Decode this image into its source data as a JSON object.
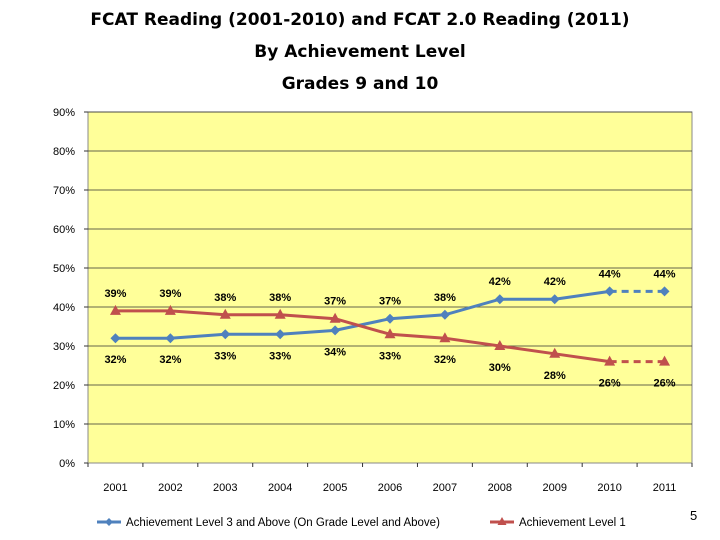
{
  "chart_data": {
    "type": "line",
    "title": "FCAT Reading (2001-2010) and FCAT 2.0 Reading (2011)",
    "subtitle": "By Achievement Level",
    "subtitle2": "Grades 9 and 10",
    "categories": [
      "2001",
      "2002",
      "2003",
      "2004",
      "2005",
      "2006",
      "2007",
      "2008",
      "2009",
      "2010",
      "2011"
    ],
    "ylim": [
      0,
      90
    ],
    "yticks": [
      "0%",
      "10%",
      "20%",
      "30%",
      "40%",
      "50%",
      "60%",
      "70%",
      "80%",
      "90%"
    ],
    "ytick_values": [
      0,
      10,
      20,
      30,
      40,
      50,
      60,
      70,
      80,
      90
    ],
    "grid": true,
    "legend_position": "bottom",
    "plot_background": "#ffff99",
    "series": [
      {
        "name": "Achievement Level 3 and Above (On Grade Level and Above)",
        "color": "#4f81bd",
        "marker": "diamond",
        "values": [
          32,
          32,
          33,
          33,
          34,
          37,
          38,
          42,
          42,
          44,
          44
        ],
        "labels": [
          "32%",
          "32%",
          "33%",
          "33%",
          "34%",
          "37%",
          "38%",
          "42%",
          "42%",
          "44%",
          "44%"
        ],
        "label_position": [
          "below",
          "below",
          "below",
          "below",
          "below",
          "above",
          "above",
          "above",
          "above",
          "above",
          "above"
        ],
        "dashed_last_segment": true
      },
      {
        "name": "Achievement Level 1",
        "color": "#c0504d",
        "marker": "triangle",
        "values": [
          39,
          39,
          38,
          38,
          37,
          33,
          32,
          30,
          28,
          26,
          26
        ],
        "labels": [
          "39%",
          "39%",
          "38%",
          "38%",
          "37%",
          "33%",
          "32%",
          "30%",
          "28%",
          "26%",
          "26%"
        ],
        "label_position": [
          "above",
          "above",
          "above",
          "above",
          "above",
          "below",
          "below",
          "below",
          "below",
          "below",
          "below"
        ],
        "dashed_last_segment": true
      }
    ]
  },
  "page_number": "5"
}
